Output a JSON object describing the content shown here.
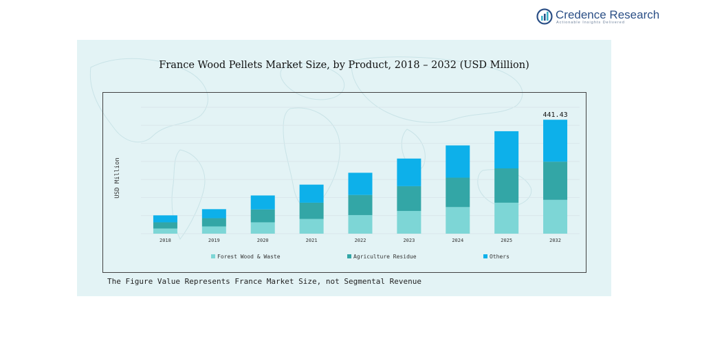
{
  "brand": {
    "name": "Credence Research",
    "tagline": "Actionable Insights Delivered"
  },
  "footnote": "The Figure Value Represents France Market Size, not Segmental Revenue",
  "colors": {
    "forest": "#7dd6d6",
    "agri": "#33a6a6",
    "others": "#0db0ea",
    "panel_bg": "#e3f3f5",
    "brand": "#2b4f86"
  },
  "chart_data": {
    "type": "bar",
    "stacked": true,
    "title": "France Wood Pellets Market Size, by Product, 2018  – 2032 (USD Million)",
    "xlabel": "",
    "ylabel": "USD Million",
    "categories": [
      "2018",
      "2019",
      "2020",
      "2021",
      "2022",
      "2023",
      "2024",
      "2025",
      "2032"
    ],
    "series": [
      {
        "name": "Forest Wood & Waste",
        "color": "#7dd6d6",
        "values": [
          20,
          28,
          44,
          57,
          72,
          88,
          103,
          120,
          131
        ]
      },
      {
        "name": "Agriculture Residue",
        "color": "#33a6a6",
        "values": [
          24,
          32,
          50,
          63,
          78,
          96,
          114,
          133,
          148
        ]
      },
      {
        "name": "Others",
        "color": "#0db0ea",
        "values": [
          27,
          35,
          54,
          70,
          86,
          107,
          125,
          144,
          162.43
        ]
      }
    ],
    "totals_labeled": {
      "2032": "441.43"
    },
    "ylim": [
      0,
      490
    ],
    "grid": true,
    "legend_position": "bottom"
  }
}
